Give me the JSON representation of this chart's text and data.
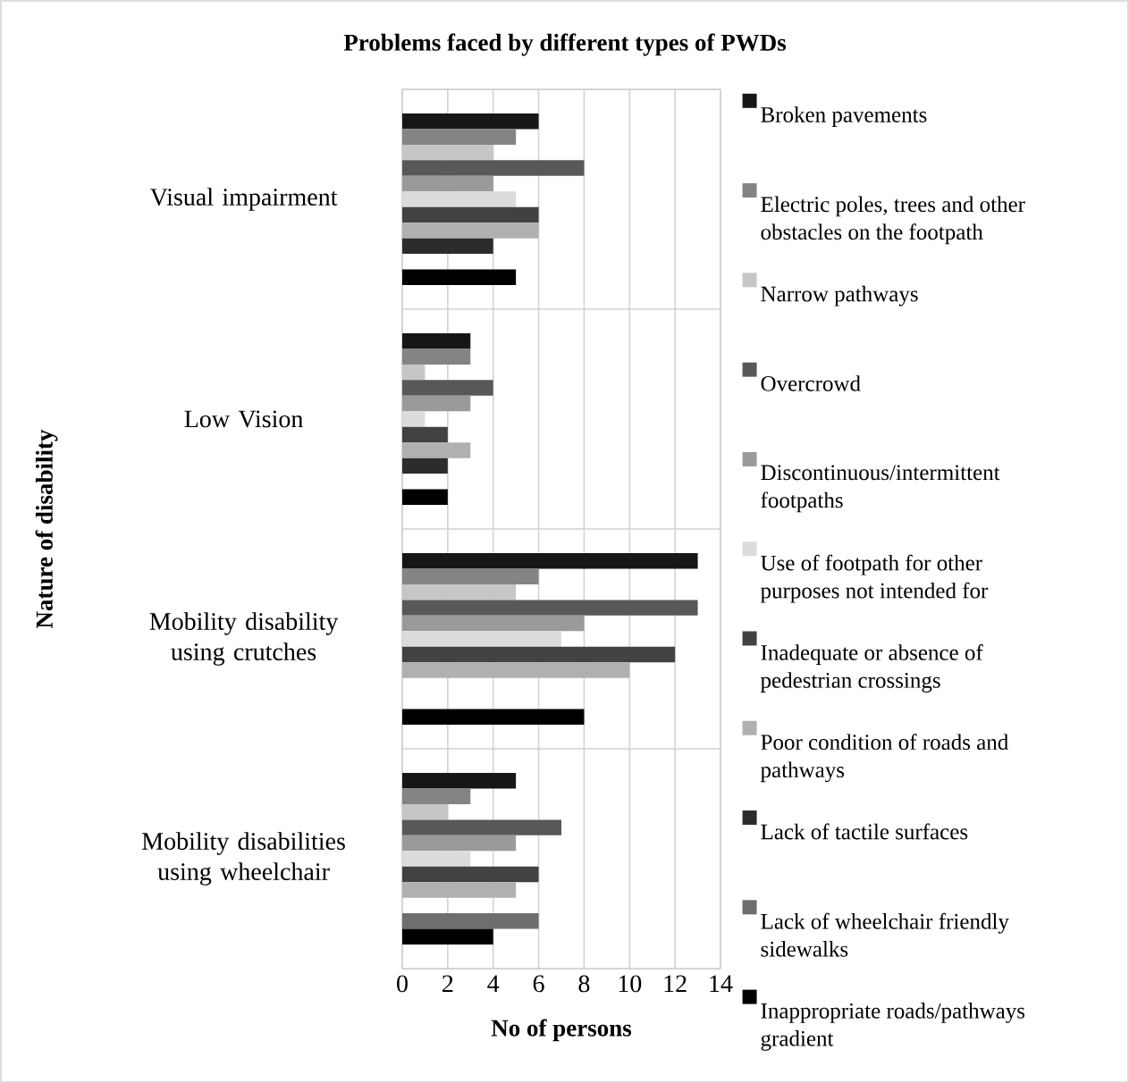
{
  "chart_data": {
    "type": "bar",
    "orientation": "horizontal",
    "title": "Problems faced by different types of PWDs",
    "xlabel": "No of persons",
    "ylabel": "Nature of disability",
    "categories": [
      "Visual impairment",
      "Low Vision",
      "Mobility disability using crutches",
      "Mobility disabilities using wheelchair"
    ],
    "series": [
      {
        "name": "Broken pavements",
        "color": "#161616",
        "values": [
          6,
          3,
          13,
          5
        ]
      },
      {
        "name": "Electric poles, trees and other obstacles on the footpath",
        "color": "#848484",
        "values": [
          5,
          3,
          6,
          3
        ]
      },
      {
        "name": "Narrow pathways",
        "color": "#c6c6c6",
        "values": [
          4,
          1,
          5,
          2
        ]
      },
      {
        "name": "Overcrowd",
        "color": "#585858",
        "values": [
          8,
          4,
          13,
          7
        ]
      },
      {
        "name": "Discontinuous/intermittent footpaths",
        "color": "#9a9a9a",
        "values": [
          4,
          3,
          8,
          5
        ]
      },
      {
        "name": "Use of footpath for other purposes not intended for",
        "color": "#dcdcdc",
        "values": [
          5,
          1,
          7,
          3
        ]
      },
      {
        "name": "Inadequate or absence of pedestrian crossings",
        "color": "#424242",
        "values": [
          6,
          2,
          12,
          6
        ]
      },
      {
        "name": "Poor condition of roads and pathways",
        "color": "#b0b0b0",
        "values": [
          6,
          3,
          10,
          5
        ]
      },
      {
        "name": "Lack of tactile surfaces",
        "color": "#2c2c2c",
        "values": [
          4,
          2,
          null,
          null
        ]
      },
      {
        "name": "Lack of wheelchair friendly sidewalks",
        "color": "#6e6e6e",
        "values": [
          null,
          null,
          null,
          6
        ]
      },
      {
        "name": "Inappropriate roads/pathways gradient",
        "color": "#000000",
        "values": [
          5,
          2,
          8,
          4
        ]
      }
    ],
    "xlim": [
      0,
      14
    ],
    "xticks": [
      0,
      2,
      4,
      6,
      8,
      10,
      12,
      14
    ],
    "grid": true,
    "legend": "right"
  }
}
